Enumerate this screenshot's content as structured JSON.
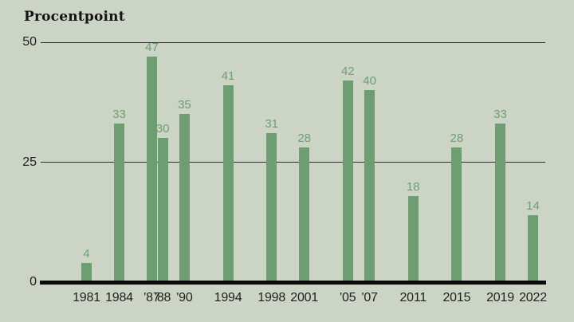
{
  "title": "Procentpoint",
  "colors": {
    "background": "#ccd5c5",
    "bar": "#6f9d72",
    "value_label": "#6f9d72",
    "axis": "#0b0b0b",
    "gridline": "#2e2e2e",
    "tick_text": "#1f1f1f",
    "title_text": "#141414"
  },
  "chart_data": {
    "type": "bar",
    "title": "Procentpoint",
    "categories": [
      "1981",
      "1984",
      "'87",
      "'88",
      "'90",
      "1994",
      "1998",
      "2001",
      "'05",
      "'07",
      "2011",
      "2015",
      "2019",
      "2022"
    ],
    "years": [
      1981,
      1984,
      1987,
      1988,
      1990,
      1994,
      1998,
      2001,
      2005,
      2007,
      2011,
      2015,
      2019,
      2022
    ],
    "values": [
      4,
      33,
      47,
      30,
      35,
      41,
      31,
      28,
      42,
      40,
      18,
      28,
      33,
      14
    ],
    "xlabel": "",
    "ylabel": "Procentpoint",
    "ylim": [
      0,
      50
    ],
    "yticks": [
      0,
      25,
      50
    ],
    "grid": "horizontal-only",
    "legend": "none",
    "data_labels": true,
    "x_axis_scale": "linear-by-year"
  }
}
